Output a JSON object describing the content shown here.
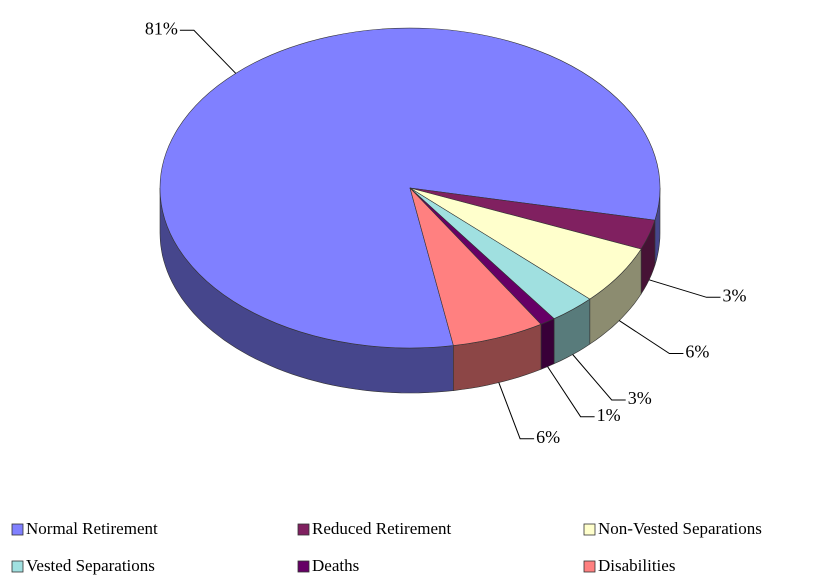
{
  "chart_data": {
    "type": "pie",
    "categories": [
      "Normal Retirement",
      "Reduced Retirement",
      "Non-Vested Separations",
      "Vested Separations",
      "Deaths",
      "Disabilities"
    ],
    "values": [
      81,
      3,
      6,
      3,
      1,
      6
    ],
    "value_labels": [
      "81%",
      "3%",
      "6%",
      "3%",
      "1%",
      "6%"
    ],
    "colors": [
      "#8080ff",
      "#802060",
      "#ffffcc",
      "#a0e0e0",
      "#660066",
      "#ff8080"
    ],
    "legend": "bottom"
  }
}
